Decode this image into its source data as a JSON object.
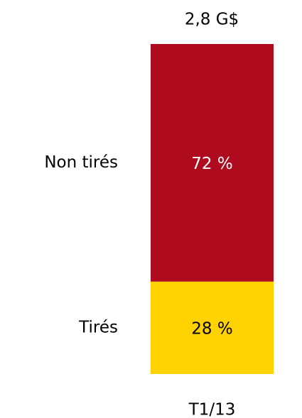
{
  "chart_data": {
    "type": "bar",
    "stacked": true,
    "annotations": [
      "2,8 G$"
    ],
    "categories": [
      "T1/13"
    ],
    "ylim": [
      0,
      100
    ],
    "series": [
      {
        "name": "Tirés",
        "color": "#ffd200",
        "values": [
          28
        ],
        "value_labels": [
          "28 %"
        ]
      },
      {
        "name": "Non tirés",
        "color": "#ae0c1e",
        "values": [
          72
        ],
        "value_labels": [
          "72 %"
        ]
      }
    ]
  }
}
